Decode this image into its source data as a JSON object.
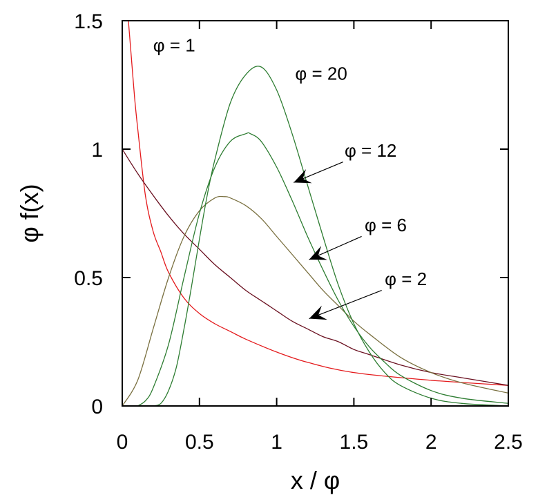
{
  "chart_data": {
    "type": "line",
    "xlabel": "x / φ",
    "ylabel": "φ f(x)",
    "xlim": [
      0,
      2.5
    ],
    "ylim": [
      0,
      1.5
    ],
    "x_ticks": [
      0,
      0.5,
      1,
      1.5,
      2,
      2.5
    ],
    "x_tick_labels": [
      "0",
      "0.5",
      "1",
      "1.5",
      "2",
      "2.5"
    ],
    "y_ticks": [
      0,
      0.5,
      1,
      1.5
    ],
    "y_tick_labels": [
      "0",
      "0.5",
      "1",
      "1.5"
    ],
    "grid": false,
    "legend": "none",
    "series": [
      {
        "name": "φ = 1",
        "color": "#e41a1c",
        "x": [
          0.04,
          0.06,
          0.08,
          0.1,
          0.15,
          0.2,
          0.25,
          0.3,
          0.4,
          0.5,
          0.6,
          0.7,
          0.8,
          1.0,
          1.2,
          1.5,
          2.0,
          2.5
        ],
        "y": [
          1.5,
          1.35,
          1.2,
          1.08,
          0.82,
          0.68,
          0.6,
          0.52,
          0.42,
          0.36,
          0.32,
          0.29,
          0.26,
          0.21,
          0.17,
          0.13,
          0.1,
          0.08
        ]
      },
      {
        "name": "φ = 2",
        "color": "#6a1020",
        "x": [
          0,
          0.1,
          0.2,
          0.3,
          0.4,
          0.5,
          0.6,
          0.7,
          0.8,
          0.9,
          1.0,
          1.1,
          1.2,
          1.3,
          1.4,
          1.5,
          1.6,
          1.8,
          2.0,
          2.2,
          2.5
        ],
        "y": [
          1.0,
          0.905,
          0.82,
          0.74,
          0.67,
          0.61,
          0.55,
          0.5,
          0.45,
          0.41,
          0.37,
          0.33,
          0.3,
          0.27,
          0.25,
          0.22,
          0.2,
          0.16,
          0.13,
          0.11,
          0.08
        ]
      },
      {
        "name": "φ = 6",
        "color": "#7a7040",
        "x": [
          0,
          0.1,
          0.2,
          0.3,
          0.4,
          0.5,
          0.6,
          0.66,
          0.7,
          0.8,
          0.9,
          1.0,
          1.1,
          1.2,
          1.3,
          1.4,
          1.5,
          1.6,
          1.8,
          2.0,
          2.2,
          2.5
        ],
        "y": [
          0,
          0.1,
          0.3,
          0.5,
          0.66,
          0.76,
          0.81,
          0.815,
          0.81,
          0.78,
          0.73,
          0.66,
          0.59,
          0.52,
          0.45,
          0.39,
          0.33,
          0.28,
          0.19,
          0.13,
          0.09,
          0.05
        ]
      },
      {
        "name": "φ = 12",
        "color": "#2e7d32",
        "x": [
          0.1,
          0.15,
          0.2,
          0.3,
          0.4,
          0.5,
          0.6,
          0.7,
          0.8,
          0.83,
          0.9,
          1.0,
          1.1,
          1.2,
          1.3,
          1.4,
          1.5,
          1.6,
          1.7,
          1.8,
          2.0,
          2.2,
          2.5
        ],
        "y": [
          0,
          0.02,
          0.07,
          0.24,
          0.5,
          0.75,
          0.93,
          1.03,
          1.06,
          1.06,
          1.03,
          0.93,
          0.8,
          0.66,
          0.53,
          0.41,
          0.31,
          0.23,
          0.17,
          0.12,
          0.06,
          0.03,
          0.01
        ]
      },
      {
        "name": "φ = 20",
        "color": "#2e7d32",
        "x": [
          0.2,
          0.25,
          0.3,
          0.35,
          0.4,
          0.45,
          0.5,
          0.55,
          0.6,
          0.7,
          0.8,
          0.9,
          1.0,
          1.1,
          1.2,
          1.3,
          1.4,
          1.5,
          1.6,
          1.7,
          1.8,
          2.0,
          2.2,
          2.5
        ],
        "y": [
          0,
          0.01,
          0.06,
          0.15,
          0.3,
          0.47,
          0.65,
          0.82,
          0.96,
          1.18,
          1.29,
          1.32,
          1.23,
          1.06,
          0.86,
          0.66,
          0.47,
          0.32,
          0.21,
          0.13,
          0.08,
          0.03,
          0.01,
          0.0
        ]
      }
    ],
    "annotations": [
      {
        "text": "φ = 1",
        "x": 0.2,
        "y": 1.38,
        "arrow": false
      },
      {
        "text": "φ = 20",
        "x": 1.12,
        "y": 1.27,
        "arrow": false
      },
      {
        "text": "φ = 12",
        "x": 1.44,
        "y": 0.97,
        "arrow": true,
        "arrow_from": [
          1.43,
          0.95
        ],
        "arrow_to": [
          1.11,
          0.87
        ]
      },
      {
        "text": "φ = 6",
        "x": 1.57,
        "y": 0.68,
        "arrow": true,
        "arrow_from": [
          1.55,
          0.66
        ],
        "arrow_to": [
          1.21,
          0.57
        ]
      },
      {
        "text": "φ = 2",
        "x": 1.7,
        "y": 0.47,
        "arrow": true,
        "arrow_from": [
          1.68,
          0.45
        ],
        "arrow_to": [
          1.21,
          0.34
        ]
      }
    ]
  }
}
